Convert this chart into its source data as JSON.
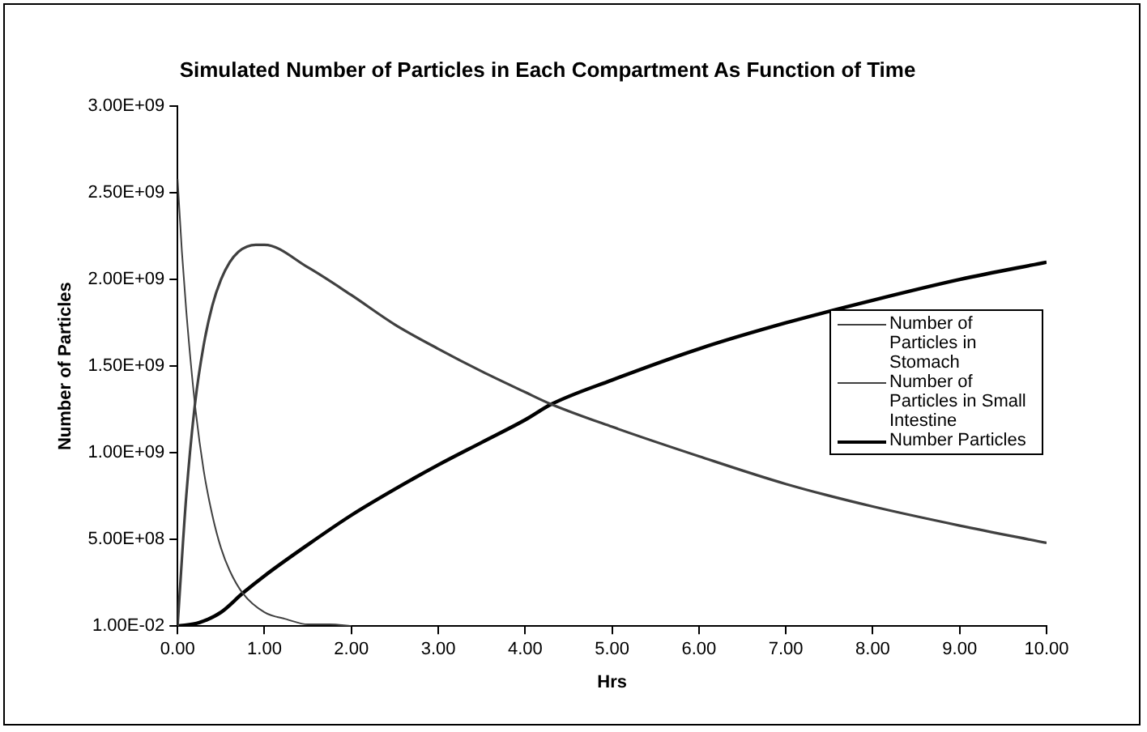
{
  "chart_data": {
    "type": "line",
    "title": "Simulated Number of Particles in Each Compartment As Function of Time",
    "xlabel": "Hrs",
    "ylabel": "Number of Particles",
    "xlim": [
      0,
      10
    ],
    "xticks": [
      {
        "value": 0,
        "label": "0.00"
      },
      {
        "value": 1,
        "label": "1.00"
      },
      {
        "value": 2,
        "label": "2.00"
      },
      {
        "value": 3,
        "label": "3.00"
      },
      {
        "value": 4,
        "label": "4.00"
      },
      {
        "value": 5,
        "label": "5.00"
      },
      {
        "value": 6,
        "label": "6.00"
      },
      {
        "value": 7,
        "label": "7.00"
      },
      {
        "value": 8,
        "label": "8.00"
      },
      {
        "value": 9,
        "label": "9.00"
      },
      {
        "value": 10,
        "label": "10.00"
      }
    ],
    "ylim": [
      0.01,
      3000000000
    ],
    "yticks": [
      {
        "value": 0.01,
        "label": "1.00E-02"
      },
      {
        "value": 500000000,
        "label": "5.00E+08"
      },
      {
        "value": 1000000000,
        "label": "1.00E+09"
      },
      {
        "value": 1500000000,
        "label": "1.50E+09"
      },
      {
        "value": 2000000000,
        "label": "2.00E+09"
      },
      {
        "value": 2500000000,
        "label": "2.50E+09"
      },
      {
        "value": 3000000000,
        "label": "3.00E+09"
      }
    ],
    "grid": false,
    "legend": "right",
    "marker": "none",
    "series": [
      {
        "name": "Number of Particles in Stomach",
        "color": "#404040",
        "x": [
          0,
          0.05,
          0.1,
          0.2,
          0.3,
          0.4,
          0.5,
          0.6,
          0.75,
          1,
          1.25,
          1.5,
          1.75,
          2
        ],
        "values": [
          2580000000,
          2160000000,
          1820000000,
          1280000000,
          900000000,
          640000000,
          450000000,
          320000000,
          190000000,
          80000000,
          40000000,
          10000000,
          10000000,
          0.01
        ]
      },
      {
        "name": "Number of Particles in Small Intestine",
        "color": "#404040",
        "x": [
          0,
          0.1,
          0.2,
          0.3,
          0.4,
          0.5,
          0.6,
          0.7,
          0.8,
          0.9,
          1,
          1.5,
          2,
          2.5,
          3,
          3.5,
          4,
          4.3,
          5,
          6,
          7,
          8,
          9,
          10
        ],
        "values": [
          0.01,
          750000000,
          1280000000,
          1620000000,
          1850000000,
          2000000000,
          2100000000,
          2160000000,
          2190000000,
          2200000000,
          2200000000,
          2070000000,
          1910000000,
          1740000000,
          1600000000,
          1470000000,
          1350000000,
          1280000000,
          1150000000,
          980000000,
          820000000,
          690000000,
          580000000,
          480000000
        ]
      },
      {
        "name": "Number Particles",
        "color": "#000000",
        "x": [
          0,
          0.25,
          0.5,
          0.75,
          1,
          1.5,
          2,
          2.5,
          3,
          3.5,
          4,
          4.3,
          5,
          6,
          7,
          8,
          9,
          10
        ],
        "values": [
          0.01,
          20000000,
          80000000,
          190000000,
          290000000,
          470000000,
          640000000,
          790000000,
          930000000,
          1060000000,
          1190000000,
          1280000000,
          1420000000,
          1600000000,
          1750000000,
          1880000000,
          2000000000,
          2100000000
        ]
      }
    ]
  }
}
